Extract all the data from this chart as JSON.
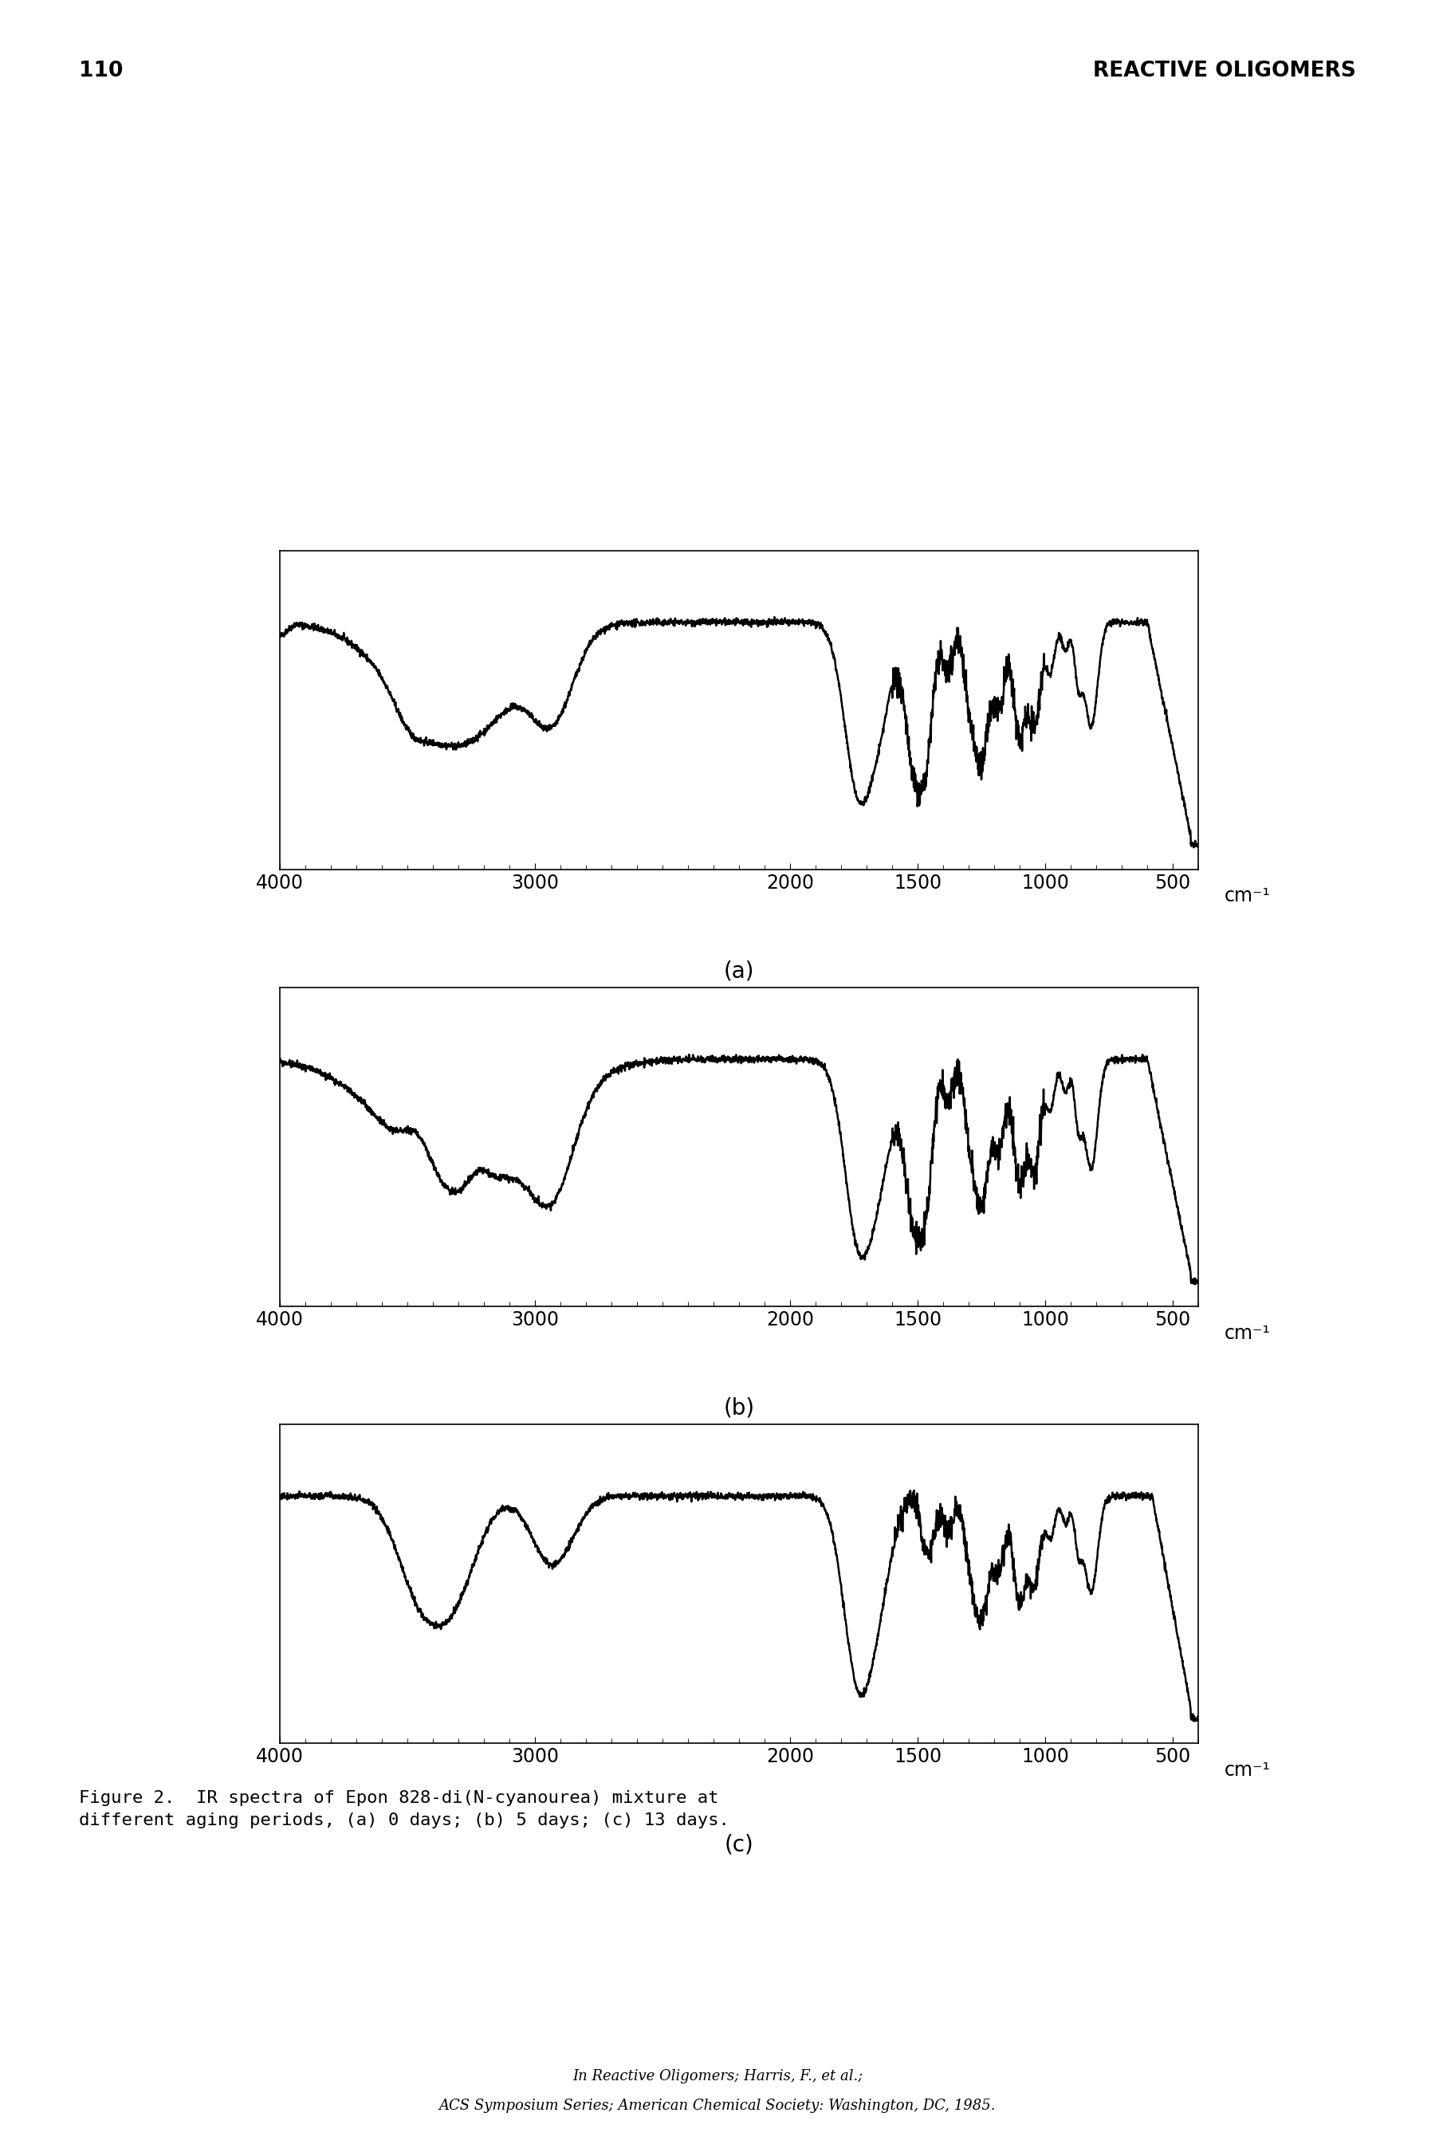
{
  "page_number": "110",
  "header_right": "REACTIVE OLIGOMERS",
  "figure_caption": "Figure 2.  IR spectra of Epon 828-di(N-cyanourea) mixture at\ndifferent aging periods, (a) 0 days; (b) 5 days; (c) 13 days.",
  "footer_line1": "In Reactive Oligomers; Harris, F., et al.;",
  "footer_line2": "ACS Symposium Series; American Chemical Society: Washington, DC, 1985.",
  "x_ticks": [
    4000,
    3000,
    2000,
    1500,
    1000,
    500
  ],
  "subplot_labels": [
    "(a)",
    "(b)",
    "(c)"
  ],
  "background_color": "#ffffff",
  "line_color": "#000000",
  "linewidth": 1.8
}
